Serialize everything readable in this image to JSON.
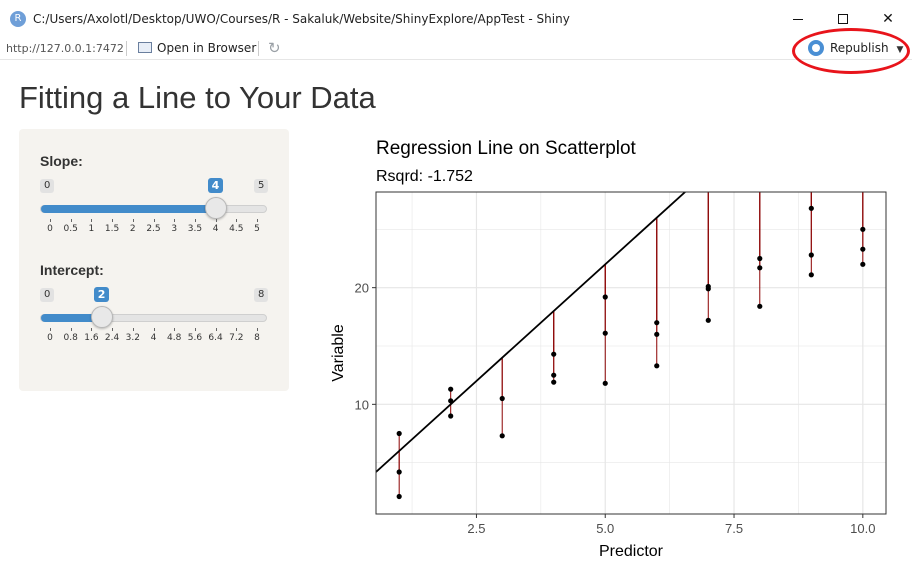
{
  "window": {
    "title": "C:/Users/Axolotl/Desktop/UWO/Courses/R - Sakaluk/Website/ShinyExplore/AppTest - Shiny",
    "app_icon_letter": "R",
    "minimize_icon": "minimize-icon",
    "maximize_icon": "maximize-icon",
    "close_label": "✕"
  },
  "toolbar": {
    "url": "http://127.0.0.1:7472",
    "open_in_browser": "Open in Browser",
    "refresh_icon": "refresh-icon",
    "republish_label": "Republish",
    "republish_icon": "publish-icon",
    "annotation_color": "#e8141b"
  },
  "app": {
    "title": "Fitting a Line to Your Data"
  },
  "sliders": {
    "slope": {
      "label": "Slope:",
      "min": 0,
      "max": 5,
      "value": 4,
      "min_label": "0",
      "max_label": "5",
      "value_label": "4",
      "ticks": [
        "0",
        "0.5",
        "1",
        "1.5",
        "2",
        "2.5",
        "3",
        "3.5",
        "4",
        "4.5",
        "5"
      ]
    },
    "intercept": {
      "label": "Intercept:",
      "min": 0,
      "max": 8,
      "value": 2,
      "min_label": "0",
      "max_label": "8",
      "value_label": "2",
      "ticks": [
        "0",
        "0.8",
        "1.6",
        "2.4",
        "3.2",
        "4",
        "4.8",
        "5.6",
        "6.4",
        "7.2",
        "8"
      ]
    },
    "accent_color": "#428bca"
  },
  "chart_data": {
    "type": "scatter",
    "title": "Regression Line on Scatterplot",
    "subtitle": "Rsqrd: -1.752",
    "xlabel": "Predictor",
    "ylabel": "Variable",
    "xlim": [
      0.55,
      10.45
    ],
    "ylim": [
      0.6,
      28.2
    ],
    "xticks": [
      2.5,
      5.0,
      7.5,
      10.0
    ],
    "xtick_labels": [
      "2.5",
      "5.0",
      "7.5",
      "10.0"
    ],
    "yticks": [
      10,
      20
    ],
    "ytick_labels": [
      "10",
      "20"
    ],
    "grid": true,
    "line": {
      "slope": 4,
      "intercept": 2,
      "color": "#000000"
    },
    "residual_color": "#8b0000",
    "points": [
      {
        "x": 1,
        "y": 7.5
      },
      {
        "x": 1,
        "y": 4.2
      },
      {
        "x": 1,
        "y": 2.1
      },
      {
        "x": 2,
        "y": 11.3
      },
      {
        "x": 2,
        "y": 10.3
      },
      {
        "x": 2,
        "y": 9.0
      },
      {
        "x": 3,
        "y": 10.5
      },
      {
        "x": 3,
        "y": 7.3
      },
      {
        "x": 4,
        "y": 14.3
      },
      {
        "x": 4,
        "y": 12.5
      },
      {
        "x": 4,
        "y": 11.9
      },
      {
        "x": 5,
        "y": 19.2
      },
      {
        "x": 5,
        "y": 16.1
      },
      {
        "x": 5,
        "y": 11.8
      },
      {
        "x": 6,
        "y": 17.0
      },
      {
        "x": 6,
        "y": 16.0
      },
      {
        "x": 6,
        "y": 13.3
      },
      {
        "x": 7,
        "y": 20.1
      },
      {
        "x": 7,
        "y": 19.9
      },
      {
        "x": 7,
        "y": 17.2
      },
      {
        "x": 8,
        "y": 22.5
      },
      {
        "x": 8,
        "y": 21.7
      },
      {
        "x": 8,
        "y": 18.4
      },
      {
        "x": 9,
        "y": 26.8
      },
      {
        "x": 9,
        "y": 22.8
      },
      {
        "x": 9,
        "y": 21.1
      },
      {
        "x": 10,
        "y": 25.0
      },
      {
        "x": 10,
        "y": 23.3
      },
      {
        "x": 10,
        "y": 22.0
      }
    ]
  }
}
